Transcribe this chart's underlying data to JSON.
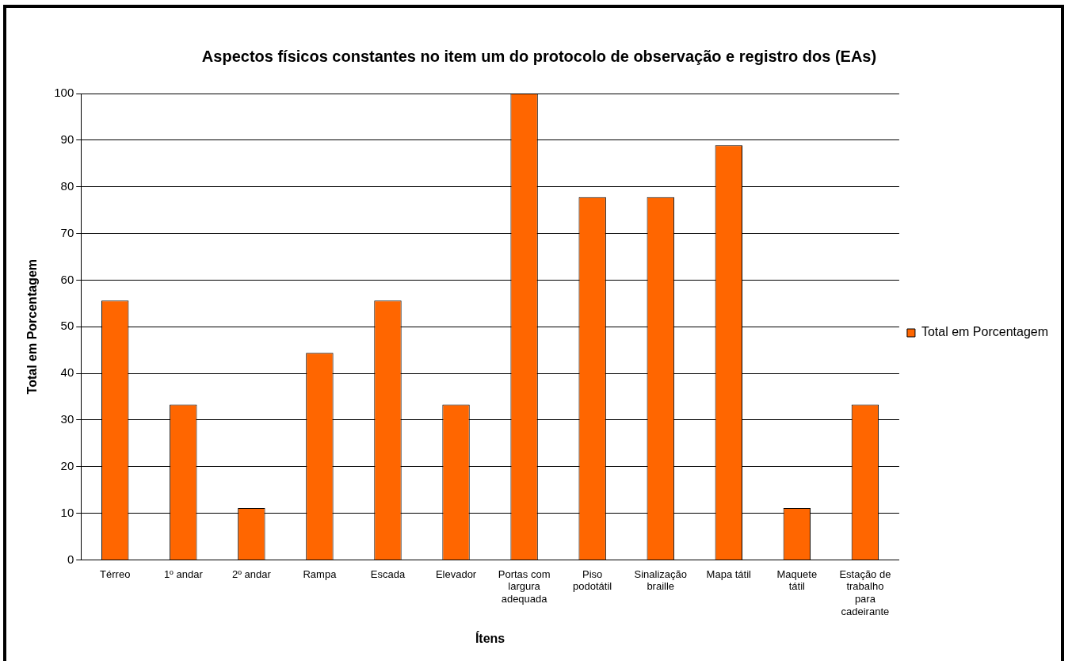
{
  "chart_data": {
    "type": "bar",
    "title": "Aspectos físicos constantes no item um do protocolo de observação e registro dos (EAs)",
    "xlabel": "Ítens",
    "ylabel": "Total em Porcentagem",
    "categories": [
      "Térreo",
      "1º andar",
      "2º andar",
      "Rampa",
      "Escada",
      "Elevador",
      "Portas com largura adequada",
      "Piso podotátil",
      "Sinalização braille",
      "Mapa tátil",
      "Maquete tátil",
      "Estação de trabalho para cadeirante"
    ],
    "series": [
      {
        "name": "Total em Porcentagem",
        "color": "#ff6600",
        "values": [
          55.6,
          33.3,
          11.1,
          44.4,
          55.6,
          33.3,
          100,
          77.8,
          77.8,
          88.9,
          11.1,
          33.3
        ]
      }
    ],
    "ylim": [
      0,
      100
    ],
    "yticks": [
      0,
      10,
      20,
      30,
      40,
      50,
      60,
      70,
      80,
      90,
      100
    ],
    "grid": "y",
    "legend": "right"
  }
}
